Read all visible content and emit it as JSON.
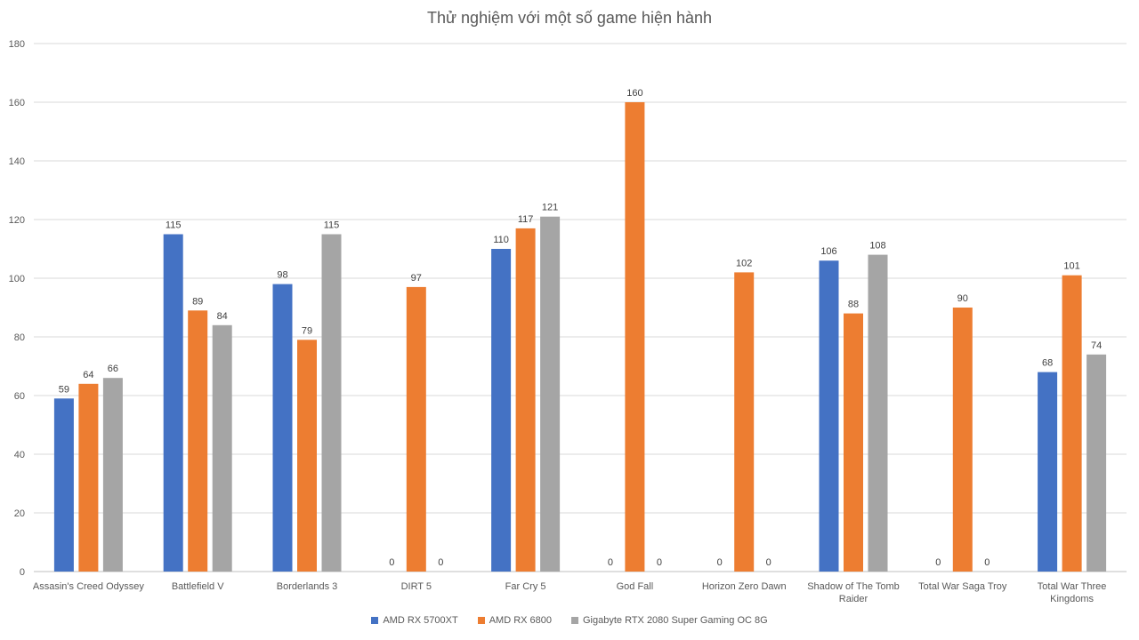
{
  "chart_data": {
    "type": "bar",
    "title": "Thử nghiệm với một số game hiện hành",
    "xlabel": "",
    "ylabel": "",
    "ylim": [
      0,
      180
    ],
    "ytick_step": 20,
    "grid": true,
    "legend_position": "bottom",
    "categories": [
      [
        "Assasin's Creed Odyssey"
      ],
      [
        "Battlefield V"
      ],
      [
        "Borderlands 3"
      ],
      [
        "DIRT 5"
      ],
      [
        "Far Cry 5"
      ],
      [
        "God Fall"
      ],
      [
        "Horizon Zero Dawn"
      ],
      [
        "Shadow of The Tomb",
        "Raider"
      ],
      [
        "Total War Saga Troy"
      ],
      [
        "Total War Three",
        "Kingdoms"
      ]
    ],
    "series": [
      {
        "name": "AMD RX 5700XT",
        "color": "#4472C4",
        "values": [
          59,
          115,
          98,
          0,
          110,
          0,
          0,
          106,
          0,
          68
        ]
      },
      {
        "name": "AMD RX 6800",
        "color": "#ED7D31",
        "values": [
          64,
          89,
          79,
          97,
          117,
          160,
          102,
          88,
          90,
          101
        ]
      },
      {
        "name": "Gigabyte RTX 2080 Super Gaming OC 8G",
        "color": "#A5A5A5",
        "values": [
          66,
          84,
          115,
          0,
          121,
          0,
          0,
          108,
          0,
          74
        ]
      }
    ]
  }
}
